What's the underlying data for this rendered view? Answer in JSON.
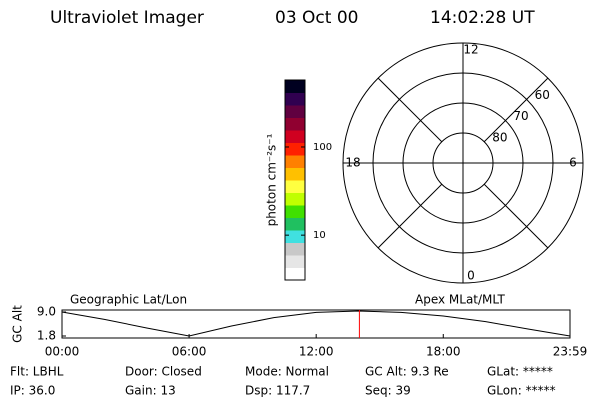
{
  "header": {
    "title": "Ultraviolet Imager",
    "date": "03 Oct 00",
    "time": "14:02:28 UT"
  },
  "colorbar": {
    "label": "photon cm⁻²s⁻¹",
    "scale": "log",
    "clim": [
      3.1,
      575
    ],
    "ticks": [
      10,
      100
    ],
    "colors": [
      "#ffffff",
      "#e6e6e6",
      "#c8c8c8",
      "#40e0e0",
      "#20c060",
      "#40e000",
      "#c0ff00",
      "#ffff40",
      "#ffc000",
      "#ff8000",
      "#ff2000",
      "#d00020",
      "#900030",
      "#600040",
      "#300050",
      "#000020"
    ]
  },
  "polar": {
    "rlim": [
      90,
      50
    ],
    "rticks": [
      60,
      70,
      80
    ],
    "mlt_labels": [
      {
        "value": 12,
        "label": "12"
      },
      {
        "value": 6,
        "label": "6"
      },
      {
        "value": 18,
        "label": "18"
      },
      {
        "value": 0,
        "label": "0"
      }
    ]
  },
  "chart_data": {
    "type": "line",
    "ylabel": "GC Alt",
    "left_label": "Geographic Lat/Lon",
    "right_label": "Apex MLat/MLT",
    "x": [
      0,
      2,
      4,
      6,
      8,
      10,
      12,
      14,
      16,
      18,
      20,
      22,
      23.983
    ],
    "values": [
      9.0,
      6.8,
      4.2,
      1.8,
      4.8,
      7.3,
      8.9,
      9.3,
      8.9,
      7.8,
      6.1,
      3.9,
      1.8
    ],
    "color": "#000000",
    "marker_x": 14.04,
    "marker_color": "#ff0000",
    "xlim": [
      0,
      23.983
    ],
    "ylim": [
      1.2,
      9.6
    ],
    "xticks": [
      {
        "value": 0,
        "label": "00:00"
      },
      {
        "value": 6,
        "label": "06:00"
      },
      {
        "value": 12,
        "label": "12:00"
      },
      {
        "value": 18,
        "label": "18:00"
      },
      {
        "value": 23.983,
        "label": "23:59"
      }
    ],
    "yticks": [
      {
        "value": 9.0,
        "label": "9.0"
      },
      {
        "value": 1.8,
        "label": "1.8"
      }
    ]
  },
  "status": [
    [
      "Flt: LBHL",
      "Door: Closed",
      "Mode: Normal",
      "GC Alt: 9.3 Re",
      "GLat: *****"
    ],
    [
      "IP: 36.0",
      "Gain: 13",
      "Dsp: 117.7",
      "Seq: 39",
      "GLon: *****"
    ]
  ]
}
